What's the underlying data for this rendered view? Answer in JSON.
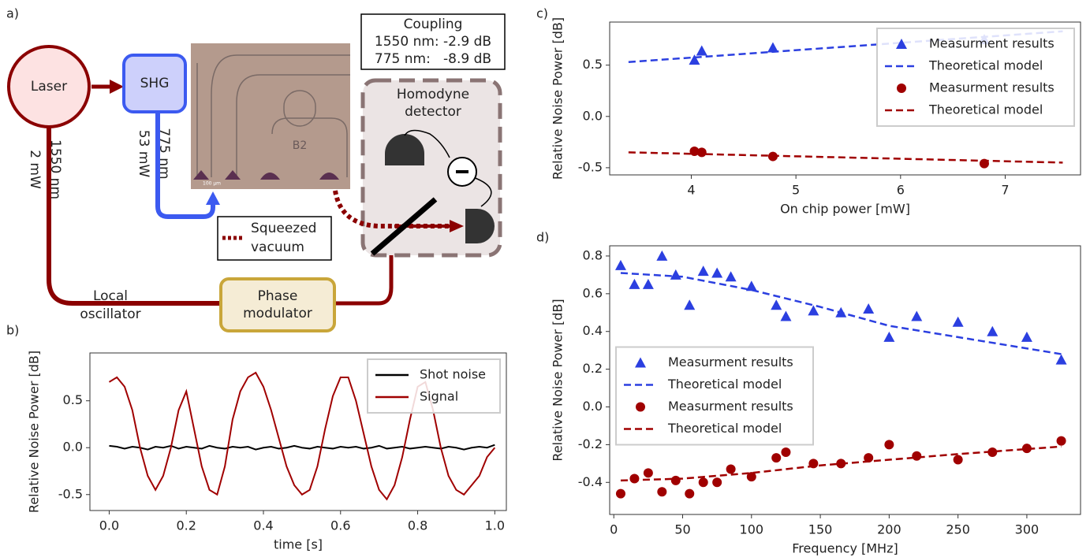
{
  "diagram": {
    "panel_a": "a)",
    "panel_b": "b)",
    "panel_c": "c)",
    "panel_d": "d)",
    "laser": "Laser",
    "shg": "SHG",
    "lo_wavelength": "1550 nm",
    "lo_power": "2 mW",
    "pump_wavelength": "775 nm",
    "pump_power": "53 mW",
    "chip_label": "B2",
    "chip_scale": "100 µm",
    "coupling_title": "Coupling",
    "coupling_1550": "1550 nm: -2.9 dB",
    "coupling_775": "775 nm:   -8.9 dB",
    "homodyne": [
      "Homodyne",
      "detector"
    ],
    "squeezed": [
      "Squeezed",
      "vacuum"
    ],
    "local_oscillator": [
      "Local",
      "oscillator"
    ],
    "phase_modulator": [
      "Phase",
      "modulator"
    ]
  },
  "chart_data": [
    {
      "type": "line",
      "xlabel": "time [s]",
      "ylabel": "Relative Noise Power [dB]",
      "x": [
        0,
        0.02,
        0.04,
        0.06,
        0.08,
        0.1,
        0.12,
        0.14,
        0.16,
        0.18,
        0.2,
        0.22,
        0.24,
        0.26,
        0.28,
        0.3,
        0.32,
        0.34,
        0.36,
        0.38,
        0.4,
        0.42,
        0.44,
        0.46,
        0.48,
        0.5,
        0.52,
        0.54,
        0.56,
        0.58,
        0.6,
        0.62,
        0.64,
        0.66,
        0.68,
        0.7,
        0.72,
        0.74,
        0.76,
        0.78,
        0.8,
        0.82,
        0.84,
        0.86,
        0.88,
        0.9,
        0.92,
        0.94,
        0.96,
        0.98,
        1
      ],
      "series": [
        {
          "name": "Shot noise",
          "color": "#000000",
          "values": [
            0.02,
            0.01,
            -0.01,
            0.01,
            0,
            -0.02,
            0.01,
            0,
            0.02,
            -0.01,
            0.01,
            0,
            -0.01,
            0.02,
            0,
            -0.01,
            0.01,
            0,
            0.01,
            -0.02,
            0,
            0.01,
            -0.01,
            0,
            0.02,
            0,
            -0.01,
            0.01,
            0,
            -0.01,
            0.01,
            0,
            0.01,
            -0.01,
            0,
            0.02,
            -0.01,
            0,
            0.01,
            -0.01,
            0,
            0.01,
            0,
            -0.01,
            0.01,
            0,
            -0.02,
            0,
            0.01,
            0,
            0.03
          ]
        },
        {
          "name": "Signal",
          "color": "#a00000",
          "values": [
            0.7,
            0.75,
            0.65,
            0.4,
            0,
            -0.3,
            -0.45,
            -0.3,
            0,
            0.4,
            0.6,
            0.2,
            -0.2,
            -0.45,
            -0.5,
            -0.2,
            0.3,
            0.6,
            0.75,
            0.8,
            0.65,
            0.4,
            0.1,
            -0.2,
            -0.4,
            -0.5,
            -0.45,
            -0.2,
            0.2,
            0.55,
            0.75,
            0.75,
            0.5,
            0.15,
            -0.2,
            -0.45,
            -0.55,
            -0.4,
            -0.1,
            0.3,
            0.65,
            0.7,
            0.4,
            0,
            -0.3,
            -0.45,
            -0.5,
            -0.4,
            -0.3,
            -0.1,
            0
          ]
        }
      ],
      "xlim": [
        -0.05,
        1.03
      ],
      "ylim": [
        -0.67,
        1.01
      ],
      "xticks": [
        {
          "value": 0,
          "label": "0.0"
        },
        0.2,
        0.4,
        0.6,
        0.8,
        {
          "value": 1,
          "label": "1.0"
        }
      ],
      "yticks": [
        -0.5,
        {
          "value": 0,
          "label": "0.0"
        },
        0.5
      ],
      "legend": "upper right"
    },
    {
      "type": "scatter",
      "xlabel": "On chip power [mW]",
      "ylabel": "Relative Noise Power [dB]",
      "series": [
        {
          "name": "Measurment results",
          "color": "#2b3fe0",
          "kind": "marker",
          "marker": "triangle",
          "x": [
            4.03,
            4.1,
            4.78,
            6.8
          ],
          "values": [
            0.55,
            0.64,
            0.67,
            0.75
          ]
        },
        {
          "name": "Theoretical model",
          "color": "#2b3fe0",
          "kind": "dashed",
          "x": [
            3.4,
            7.55
          ],
          "values": [
            0.53,
            0.83
          ]
        },
        {
          "name": "Measurment results",
          "color": "#a00000",
          "kind": "marker",
          "marker": "circle",
          "x": [
            4.03,
            4.1,
            4.78,
            6.8
          ],
          "values": [
            -0.34,
            -0.35,
            -0.39,
            -0.46
          ]
        },
        {
          "name": "Theoretical model",
          "color": "#a00000",
          "kind": "dashed",
          "x": [
            3.4,
            7.55
          ],
          "values": [
            -0.35,
            -0.45
          ]
        }
      ],
      "xlim": [
        3.22,
        7.72
      ],
      "ylim": [
        -0.57,
        0.92
      ],
      "xticks": [
        4,
        5,
        6,
        7
      ],
      "yticks": [
        -0.5,
        {
          "value": 0,
          "label": "0.0"
        },
        0.5
      ],
      "legend": "upper right"
    },
    {
      "type": "scatter",
      "xlabel": "Frequency [MHz]",
      "ylabel": "Relative Noise Power [dB]",
      "series": [
        {
          "name": "Measurment results",
          "color": "#2b3fe0",
          "kind": "marker",
          "marker": "triangle",
          "x": [
            5,
            15,
            25,
            35,
            45,
            55,
            65,
            75,
            85,
            100,
            118,
            125,
            145,
            165,
            185,
            200,
            220,
            250,
            275,
            300,
            325
          ],
          "values": [
            0.75,
            0.65,
            0.65,
            0.8,
            0.7,
            0.54,
            0.72,
            0.71,
            0.69,
            0.64,
            0.54,
            0.48,
            0.51,
            0.5,
            0.52,
            0.37,
            0.48,
            0.45,
            0.4,
            0.37,
            0.25
          ]
        },
        {
          "name": "Theoretical model",
          "color": "#2b3fe0",
          "kind": "dashed",
          "x": [
            5,
            50,
            100,
            150,
            200,
            250,
            325
          ],
          "values": [
            0.71,
            0.69,
            0.62,
            0.53,
            0.43,
            0.37,
            0.28
          ]
        },
        {
          "name": "Measurment results",
          "color": "#a00000",
          "kind": "marker",
          "marker": "circle",
          "x": [
            5,
            15,
            25,
            35,
            45,
            55,
            65,
            75,
            85,
            100,
            118,
            125,
            145,
            165,
            185,
            200,
            220,
            250,
            275,
            300,
            325
          ],
          "values": [
            -0.46,
            -0.38,
            -0.35,
            -0.45,
            -0.39,
            -0.46,
            -0.4,
            -0.4,
            -0.33,
            -0.37,
            -0.27,
            -0.24,
            -0.3,
            -0.3,
            -0.27,
            -0.2,
            -0.26,
            -0.28,
            -0.24,
            -0.22,
            -0.18
          ]
        },
        {
          "name": "Theoretical model",
          "color": "#a00000",
          "kind": "dashed",
          "x": [
            5,
            50,
            100,
            150,
            200,
            250,
            325
          ],
          "values": [
            -0.39,
            -0.38,
            -0.35,
            -0.31,
            -0.28,
            -0.25,
            -0.21
          ]
        }
      ],
      "xlim": [
        -3,
        339
      ],
      "ylim": [
        -0.57,
        0.854
      ],
      "xticks": [
        0,
        50,
        100,
        150,
        200,
        250,
        300
      ],
      "yticks": [
        -0.4,
        -0.2,
        {
          "value": 0,
          "label": "0.0"
        },
        0.2,
        0.4,
        0.6,
        0.8
      ],
      "legend": "center left"
    }
  ]
}
